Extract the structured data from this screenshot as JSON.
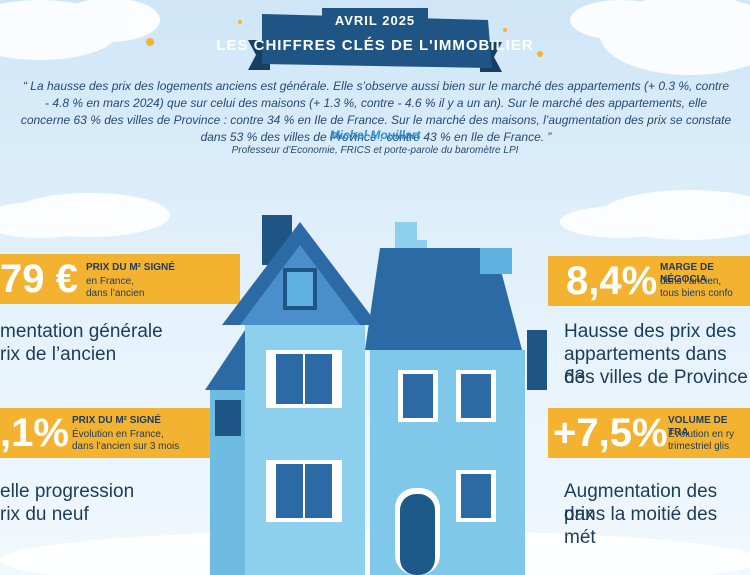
{
  "header": {
    "date": "AVRIL 2025",
    "title": "LES CHIFFRES CLÉS DE L'IMMOBILIER"
  },
  "quote": {
    "text": "“ La hausse des prix des logements anciens est générale. Elle s’observe aussi bien sur le marché des appartements (+ 0.3 %, contre - 4.8 % en mars 2024) que sur celui des maisons (+ 1.3 %, contre - 4.6 % il y a un an). Sur le marché des appartements, elle concerne 63 % des villes de Province : contre 34 % en Ile de France. Sur le marché des maisons, l’augmentation des prix se constate dans 53 % des villes de Province : contre 43 % en Ile de France. ”",
    "author": "Michel Mouillart",
    "role": "Professeur d’Economie, FRICS et porte-parole du baromètre LPI"
  },
  "stats": {
    "top_left": {
      "value": "79 €",
      "label": "PRIX DU M² SIGNÉ",
      "sub1": "en France,",
      "sub2": "dans l’ancien",
      "desc1": "mentation générale",
      "desc2": "rix de l’ancien"
    },
    "top_right": {
      "value": "8,4%",
      "label": "MARGE DE NÉGOCIA",
      "sub1": "dans l’ancien,",
      "sub2": "tous biens confo",
      "desc1": "Hausse des prix des",
      "desc2": "appartements dans 63",
      "desc3": "des villes de Province"
    },
    "bottom_left": {
      "value": ",1%",
      "label": "PRIX DU M² SIGNÉ",
      "sub1": "Évolution en France,",
      "sub2": "dans l’ancien sur 3 mois",
      "desc1": "elle progression",
      "desc2": "rix du neuf"
    },
    "bottom_right": {
      "value": "+7,5%",
      "label": "VOLUME DE TRA",
      "sub1": "Évolution en ry",
      "sub2": "trimestriel glis",
      "desc1": "Augmentation des prix",
      "desc2": "dans la moitié des mét"
    }
  },
  "colors": {
    "ribbon": "#1f5585",
    "band": "#f3b331",
    "sky": "#cfe6f7",
    "house_wall": "#8cd0ee",
    "roof": "#2b6aa5",
    "text_dark": "#1d3b5a",
    "author": "#2e8fd0"
  }
}
